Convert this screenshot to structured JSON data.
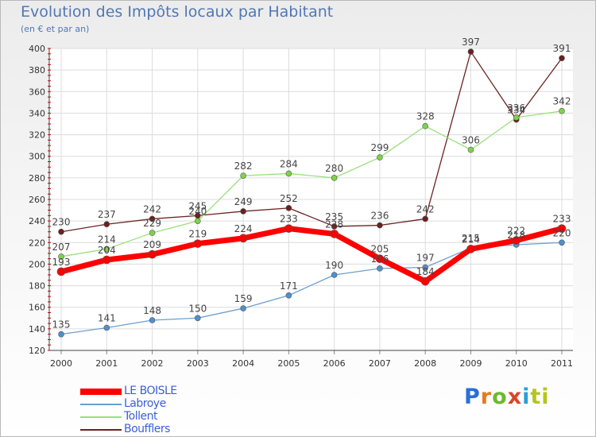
{
  "title": "Evolution des Impôts locaux par Habitant",
  "subtitle": "(en € et par an)",
  "logo": "Proxiti",
  "colors": {
    "LE BOISLE": "#ff0000",
    "Labroye": "#6b9fcf",
    "Tollent": "#99e07a",
    "Boufflers": "#6b2323"
  },
  "chart_data": {
    "type": "line",
    "title": "Evolution des Impôts locaux par Habitant",
    "subtitle": "(en € et par an)",
    "xlabel": "",
    "ylabel": "",
    "x": [
      "2000",
      "2001",
      "2002",
      "2003",
      "2004",
      "2005",
      "2006",
      "2007",
      "2008",
      "2009",
      "2010",
      "2011"
    ],
    "ylim": [
      120,
      400
    ],
    "yticks": [
      120,
      140,
      160,
      180,
      200,
      220,
      240,
      260,
      280,
      300,
      320,
      340,
      360,
      380,
      400
    ],
    "grid": true,
    "legend_position": "bottom-left",
    "series": [
      {
        "name": "LE BOISLE",
        "values": [
          193,
          204,
          209,
          219,
          224,
          233,
          228,
          205,
          184,
          214,
          222,
          233
        ]
      },
      {
        "name": "Labroye",
        "values": [
          135,
          141,
          148,
          150,
          159,
          171,
          190,
          196,
          197,
          215,
          218,
          220
        ]
      },
      {
        "name": "Tollent",
        "values": [
          207,
          214,
          229,
          240,
          282,
          284,
          280,
          299,
          328,
          306,
          336,
          342
        ]
      },
      {
        "name": "Boufflers",
        "values": [
          230,
          237,
          242,
          245,
          249,
          252,
          235,
          236,
          242,
          397,
          334,
          391
        ]
      }
    ]
  }
}
